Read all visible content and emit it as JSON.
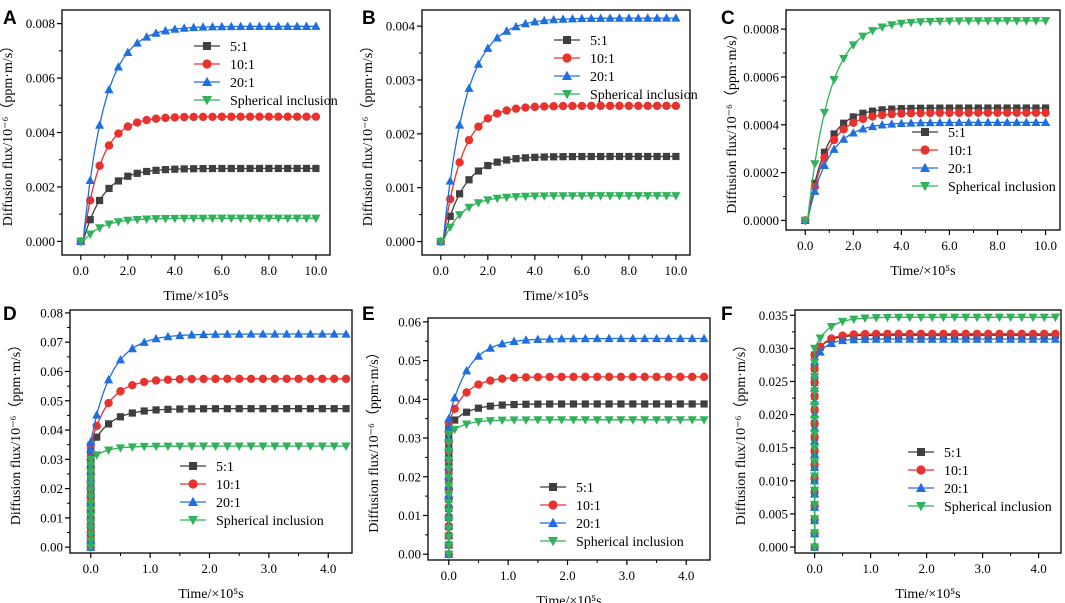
{
  "figure": {
    "xlabel": "Time/×10⁵s",
    "ylabel": "Diffusion flux/10⁻⁶（ppm·m/s）"
  },
  "colors": {
    "5:1": "#3f3f3f",
    "10:1": "#e8322d",
    "20:1": "#1f6fe0",
    "Spherical inclusion": "#2fb25a"
  },
  "chart_data": [
    {
      "type": "line",
      "panel": "A",
      "title": "",
      "xlabel": "Time/×10⁵s",
      "ylabel": "Diffusion flux/10⁻⁶（ppm·m/s）",
      "xlim": [
        -0.8,
        10.6
      ],
      "ylim": [
        -0.0005,
        0.0085
      ],
      "xticks": [
        "0.0",
        "2.0",
        "4.0",
        "6.0",
        "8.0",
        "10.0"
      ],
      "yticks": [
        "0.000",
        "0.002",
        "0.004",
        "0.006",
        "0.008"
      ],
      "legend_position": "top-right",
      "series": [
        {
          "name": "5:1",
          "plateau": 0.00268,
          "tau": 0.85,
          "marker": "square"
        },
        {
          "name": "10:1",
          "plateau": 0.00458,
          "tau": 0.75,
          "marker": "circle"
        },
        {
          "name": "20:1",
          "plateau": 0.0079,
          "tau": 0.9,
          "marker": "triangle-up"
        },
        {
          "name": "Spherical inclusion",
          "plateau": 0.00085,
          "tau": 0.8,
          "marker": "triangle-down"
        }
      ]
    },
    {
      "type": "line",
      "panel": "B",
      "title": "",
      "xlabel": "Time/×10⁵s",
      "ylabel": "Diffusion flux/10⁻⁶（ppm·m/s）",
      "xlim": [
        -0.8,
        10.6
      ],
      "ylim": [
        -0.00025,
        0.0043
      ],
      "xticks": [
        "0.0",
        "2.0",
        "4.0",
        "6.0",
        "8.0",
        "10.0"
      ],
      "yticks": [
        "0.000",
        "0.001",
        "0.002",
        "0.003",
        "0.004"
      ],
      "legend_position": "top-right",
      "series": [
        {
          "name": "5:1",
          "plateau": 0.00158,
          "tau": 0.85,
          "marker": "square"
        },
        {
          "name": "10:1",
          "plateau": 0.00252,
          "tau": 0.8,
          "marker": "circle"
        },
        {
          "name": "20:1",
          "plateau": 0.00415,
          "tau": 0.95,
          "marker": "triangle-up"
        },
        {
          "name": "Spherical inclusion",
          "plateau": 0.00085,
          "tau": 0.8,
          "marker": "triangle-down"
        }
      ]
    },
    {
      "type": "line",
      "panel": "C",
      "title": "",
      "xlabel": "Time/×10⁵s",
      "ylabel": "Diffusion flux/10⁻⁶（ppm·m/s）",
      "xlim": [
        -0.8,
        10.6
      ],
      "ylim": [
        -4e-05,
        0.00088
      ],
      "xticks": [
        "0.0",
        "2.0",
        "4.0",
        "6.0",
        "8.0",
        "10.0"
      ],
      "yticks": [
        "0.0000",
        "0.0002",
        "0.0004",
        "0.0006",
        "0.0008"
      ],
      "legend_position": "bottom-right",
      "series": [
        {
          "name": "5:1",
          "plateau": 0.00047,
          "tau": 0.75,
          "marker": "square"
        },
        {
          "name": "10:1",
          "plateau": 0.00045,
          "tau": 0.8,
          "marker": "circle"
        },
        {
          "name": "20:1",
          "plateau": 0.00041,
          "tau": 0.85,
          "marker": "triangle-up"
        },
        {
          "name": "Spherical inclusion",
          "plateau": 0.000835,
          "tau": 0.9,
          "marker": "triangle-down"
        }
      ]
    },
    {
      "type": "line",
      "panel": "D",
      "title": "",
      "xlabel": "Time/×10⁵s",
      "ylabel": "Diffusion flux/10⁻⁶（ppm·m/s）",
      "xlim": [
        -0.35,
        4.4
      ],
      "ylim": [
        -0.002,
        0.081
      ],
      "xticks": [
        "0.0",
        "1.0",
        "2.0",
        "3.0",
        "4.0"
      ],
      "yticks": [
        "0.00",
        "0.01",
        "0.02",
        "0.03",
        "0.04",
        "0.05",
        "0.06",
        "0.07",
        "0.08"
      ],
      "legend_position": "bottom-right",
      "series": [
        {
          "name": "5:1",
          "jump": 0.034,
          "plateau": 0.0473,
          "tau": 0.32,
          "marker": "square"
        },
        {
          "name": "10:1",
          "jump": 0.035,
          "plateau": 0.0575,
          "tau": 0.3,
          "marker": "circle"
        },
        {
          "name": "20:1",
          "jump": 0.036,
          "plateau": 0.0728,
          "tau": 0.35,
          "marker": "triangle-up"
        },
        {
          "name": "Spherical inclusion",
          "jump": 0.03,
          "plateau": 0.0345,
          "tau": 0.25,
          "marker": "triangle-down"
        }
      ]
    },
    {
      "type": "line",
      "panel": "E",
      "title": "",
      "xlabel": "Time/×10⁵s",
      "ylabel": "Diffusion flux/10⁻⁶（ppm·m/s）",
      "xlim": [
        -0.35,
        4.4
      ],
      "ylim": [
        -0.0015,
        0.061
      ],
      "xticks": [
        "0.0",
        "1.0",
        "2.0",
        "3.0",
        "4.0"
      ],
      "yticks": [
        "0.00",
        "0.01",
        "0.02",
        "0.03",
        "0.04",
        "0.05",
        "0.06"
      ],
      "legend_position": "bottom-right",
      "series": [
        {
          "name": "5:1",
          "jump": 0.033,
          "plateau": 0.0388,
          "tau": 0.3,
          "marker": "square"
        },
        {
          "name": "10:1",
          "jump": 0.034,
          "plateau": 0.0458,
          "tau": 0.28,
          "marker": "circle"
        },
        {
          "name": "20:1",
          "jump": 0.035,
          "plateau": 0.0557,
          "tau": 0.33,
          "marker": "triangle-up"
        },
        {
          "name": "Spherical inclusion",
          "jump": 0.031,
          "plateau": 0.0347,
          "tau": 0.25,
          "marker": "triangle-down"
        }
      ]
    },
    {
      "type": "line",
      "panel": "F",
      "title": "",
      "xlabel": "Time/×10⁵s",
      "ylabel": "Diffusion flux/10⁻⁶（ppm·m/s）",
      "xlim": [
        -0.35,
        4.4
      ],
      "ylim": [
        -0.0009,
        0.0358
      ],
      "xticks": [
        "0.0",
        "1.0",
        "2.0",
        "3.0",
        "4.0"
      ],
      "yticks": [
        "0.000",
        "0.005",
        "0.010",
        "0.015",
        "0.020",
        "0.025",
        "0.030",
        "0.035"
      ],
      "legend_position": "bottom-right",
      "series": [
        {
          "name": "5:1",
          "jump": 0.029,
          "plateau": 0.032,
          "tau": 0.2,
          "marker": "square"
        },
        {
          "name": "10:1",
          "jump": 0.029,
          "plateau": 0.0322,
          "tau": 0.2,
          "marker": "circle"
        },
        {
          "name": "20:1",
          "jump": 0.028,
          "plateau": 0.0314,
          "tau": 0.18,
          "marker": "triangle-up"
        },
        {
          "name": "Spherical inclusion",
          "jump": 0.03,
          "plateau": 0.0347,
          "tau": 0.25,
          "marker": "triangle-down"
        }
      ]
    }
  ]
}
